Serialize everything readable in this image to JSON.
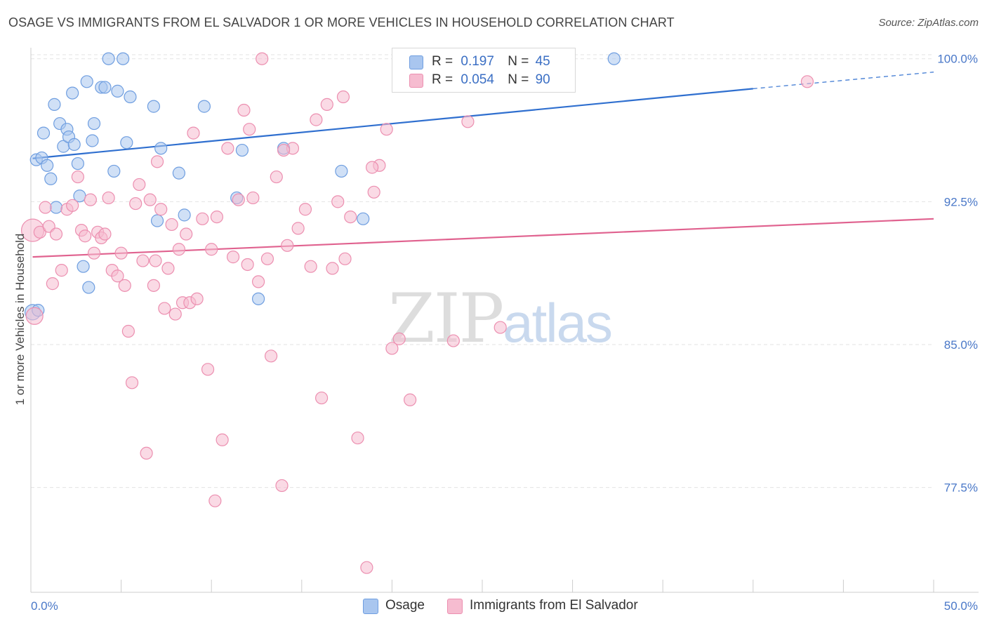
{
  "title": "OSAGE VS IMMIGRANTS FROM EL SALVADOR 1 OR MORE VEHICLES IN HOUSEHOLD CORRELATION CHART",
  "source": "Source: ZipAtlas.com",
  "watermark": {
    "zip": "ZIP",
    "atlas": "atlas"
  },
  "legend": {
    "osage": {
      "r_label": "R =",
      "r_value": "0.197",
      "n_label": "N =",
      "n_value": "45",
      "color": "#a9c6ef"
    },
    "elsalvador": {
      "r_label": "R =",
      "r_value": "0.054",
      "n_label": "N =",
      "n_value": "90",
      "color": "#f6bcd0"
    }
  },
  "bottom_legend": {
    "osage": "Osage",
    "elsalvador": "Immigrants from El Salvador"
  },
  "chart_data": {
    "type": "scatter",
    "title": "OSAGE VS IMMIGRANTS FROM EL SALVADOR 1 OR MORE VEHICLES IN HOUSEHOLD CORRELATION CHART",
    "xlabel": "",
    "ylabel": "1 or more Vehicles in Household",
    "xlim": [
      0,
      50
    ],
    "ylim": [
      72.0,
      100.8
    ],
    "x_tick_labels": [
      "0.0%",
      "50.0%"
    ],
    "y_ticks": [
      77.5,
      85.0,
      92.5,
      100.0
    ],
    "y_tick_labels": [
      "77.5%",
      "85.0%",
      "92.5%",
      "100.0%"
    ],
    "grid": true,
    "legend_position": "top-center",
    "series": [
      {
        "name": "Osage",
        "color": "#6f9ee0",
        "fill": "#a9c6ef",
        "trend": {
          "x0": 0.1,
          "y0": 94.77,
          "x1": 40.0,
          "y1": 98.43,
          "dash_to_x": 50.0,
          "dash_to_y": 99.3,
          "color": "#2f6fcf"
        },
        "points": [
          {
            "x": 0.1,
            "y": 86.7
          },
          {
            "x": 0.3,
            "y": 94.7
          },
          {
            "x": 0.6,
            "y": 94.8
          },
          {
            "x": 0.7,
            "y": 96.1
          },
          {
            "x": 0.9,
            "y": 94.4
          },
          {
            "x": 1.1,
            "y": 93.7
          },
          {
            "x": 1.3,
            "y": 97.6
          },
          {
            "x": 1.4,
            "y": 92.2
          },
          {
            "x": 1.6,
            "y": 96.6
          },
          {
            "x": 1.8,
            "y": 95.4
          },
          {
            "x": 2.0,
            "y": 96.3
          },
          {
            "x": 2.1,
            "y": 95.9
          },
          {
            "x": 2.3,
            "y": 98.2
          },
          {
            "x": 2.4,
            "y": 95.5
          },
          {
            "x": 2.6,
            "y": 94.5
          },
          {
            "x": 2.7,
            "y": 92.8
          },
          {
            "x": 2.9,
            "y": 89.1
          },
          {
            "x": 3.1,
            "y": 98.8
          },
          {
            "x": 3.2,
            "y": 88.0
          },
          {
            "x": 3.4,
            "y": 95.7
          },
          {
            "x": 3.5,
            "y": 96.6
          },
          {
            "x": 3.9,
            "y": 98.5
          },
          {
            "x": 4.1,
            "y": 98.5
          },
          {
            "x": 4.3,
            "y": 100.0
          },
          {
            "x": 4.6,
            "y": 94.1
          },
          {
            "x": 4.8,
            "y": 98.3
          },
          {
            "x": 5.1,
            "y": 100.0
          },
          {
            "x": 5.3,
            "y": 95.6
          },
          {
            "x": 5.5,
            "y": 98.0
          },
          {
            "x": 6.8,
            "y": 97.5
          },
          {
            "x": 7.0,
            "y": 91.5
          },
          {
            "x": 7.2,
            "y": 95.3
          },
          {
            "x": 8.2,
            "y": 94.0
          },
          {
            "x": 8.5,
            "y": 91.8
          },
          {
            "x": 9.6,
            "y": 97.5
          },
          {
            "x": 11.4,
            "y": 92.7
          },
          {
            "x": 11.7,
            "y": 95.2
          },
          {
            "x": 12.6,
            "y": 87.4
          },
          {
            "x": 14.0,
            "y": 95.3
          },
          {
            "x": 17.2,
            "y": 94.1
          },
          {
            "x": 18.4,
            "y": 91.6
          },
          {
            "x": 23.2,
            "y": 100.0
          },
          {
            "x": 32.3,
            "y": 100.0
          },
          {
            "x": 24.2,
            "y": 99.3
          },
          {
            "x": 0.4,
            "y": 86.8
          }
        ]
      },
      {
        "name": "Immigrants from El Salvador",
        "color": "#ec8fb0",
        "fill": "#f6bcd0",
        "trend": {
          "x0": 0.1,
          "y0": 89.6,
          "x1": 50.0,
          "y1": 91.6,
          "color": "#e0628f"
        },
        "points": [
          {
            "x": 0.1,
            "y": 91.0
          },
          {
            "x": 0.2,
            "y": 86.5
          },
          {
            "x": 0.5,
            "y": 90.9
          },
          {
            "x": 0.8,
            "y": 92.2
          },
          {
            "x": 1.0,
            "y": 91.2
          },
          {
            "x": 1.2,
            "y": 88.2
          },
          {
            "x": 1.4,
            "y": 90.8
          },
          {
            "x": 1.7,
            "y": 88.9
          },
          {
            "x": 2.0,
            "y": 92.1
          },
          {
            "x": 2.3,
            "y": 92.3
          },
          {
            "x": 2.6,
            "y": 93.8
          },
          {
            "x": 2.8,
            "y": 91.0
          },
          {
            "x": 3.0,
            "y": 90.7
          },
          {
            "x": 3.3,
            "y": 92.6
          },
          {
            "x": 3.5,
            "y": 89.8
          },
          {
            "x": 3.7,
            "y": 90.9
          },
          {
            "x": 3.9,
            "y": 90.6
          },
          {
            "x": 4.1,
            "y": 90.8
          },
          {
            "x": 4.3,
            "y": 92.7
          },
          {
            "x": 4.5,
            "y": 88.9
          },
          {
            "x": 4.8,
            "y": 88.6
          },
          {
            "x": 5.0,
            "y": 89.8
          },
          {
            "x": 5.2,
            "y": 88.1
          },
          {
            "x": 5.4,
            "y": 85.7
          },
          {
            "x": 5.6,
            "y": 83.0
          },
          {
            "x": 5.8,
            "y": 92.4
          },
          {
            "x": 6.0,
            "y": 93.4
          },
          {
            "x": 6.2,
            "y": 89.4
          },
          {
            "x": 6.4,
            "y": 79.3
          },
          {
            "x": 6.6,
            "y": 92.6
          },
          {
            "x": 6.8,
            "y": 88.1
          },
          {
            "x": 7.0,
            "y": 94.6
          },
          {
            "x": 7.2,
            "y": 92.1
          },
          {
            "x": 7.4,
            "y": 86.9
          },
          {
            "x": 7.6,
            "y": 89.0
          },
          {
            "x": 7.8,
            "y": 91.3
          },
          {
            "x": 8.0,
            "y": 86.6
          },
          {
            "x": 8.2,
            "y": 90.0
          },
          {
            "x": 8.4,
            "y": 87.2
          },
          {
            "x": 8.6,
            "y": 90.8
          },
          {
            "x": 8.8,
            "y": 87.2
          },
          {
            "x": 9.0,
            "y": 96.1
          },
          {
            "x": 9.2,
            "y": 87.4
          },
          {
            "x": 9.5,
            "y": 91.6
          },
          {
            "x": 9.8,
            "y": 83.7
          },
          {
            "x": 10.0,
            "y": 90.0
          },
          {
            "x": 10.3,
            "y": 91.7
          },
          {
            "x": 10.6,
            "y": 80.0
          },
          {
            "x": 10.9,
            "y": 95.3
          },
          {
            "x": 11.2,
            "y": 89.6
          },
          {
            "x": 11.5,
            "y": 92.6
          },
          {
            "x": 11.8,
            "y": 97.3
          },
          {
            "x": 12.0,
            "y": 89.2
          },
          {
            "x": 12.3,
            "y": 92.7
          },
          {
            "x": 12.6,
            "y": 88.3
          },
          {
            "x": 12.8,
            "y": 100.0
          },
          {
            "x": 13.1,
            "y": 89.5
          },
          {
            "x": 13.3,
            "y": 84.4
          },
          {
            "x": 13.6,
            "y": 93.8
          },
          {
            "x": 13.9,
            "y": 77.6
          },
          {
            "x": 14.2,
            "y": 90.2
          },
          {
            "x": 14.5,
            "y": 95.3
          },
          {
            "x": 14.8,
            "y": 91.1
          },
          {
            "x": 15.2,
            "y": 92.1
          },
          {
            "x": 15.5,
            "y": 89.1
          },
          {
            "x": 15.8,
            "y": 96.8
          },
          {
            "x": 16.1,
            "y": 82.2
          },
          {
            "x": 16.4,
            "y": 97.6
          },
          {
            "x": 16.7,
            "y": 89.0
          },
          {
            "x": 17.0,
            "y": 92.5
          },
          {
            "x": 17.3,
            "y": 98.0
          },
          {
            "x": 17.7,
            "y": 91.7
          },
          {
            "x": 18.1,
            "y": 80.1
          },
          {
            "x": 18.6,
            "y": 73.3
          },
          {
            "x": 19.0,
            "y": 93.0
          },
          {
            "x": 19.3,
            "y": 94.4
          },
          {
            "x": 19.7,
            "y": 96.3
          },
          {
            "x": 20.0,
            "y": 84.8
          },
          {
            "x": 20.4,
            "y": 85.3
          },
          {
            "x": 21.0,
            "y": 82.1
          },
          {
            "x": 23.4,
            "y": 85.2
          },
          {
            "x": 24.2,
            "y": 96.7
          },
          {
            "x": 26.0,
            "y": 85.9
          },
          {
            "x": 43.0,
            "y": 98.8
          },
          {
            "x": 17.4,
            "y": 89.5
          },
          {
            "x": 12.1,
            "y": 96.3
          },
          {
            "x": 10.2,
            "y": 76.8
          },
          {
            "x": 14.0,
            "y": 95.2
          },
          {
            "x": 18.9,
            "y": 94.3
          },
          {
            "x": 6.9,
            "y": 89.4
          }
        ]
      }
    ]
  }
}
